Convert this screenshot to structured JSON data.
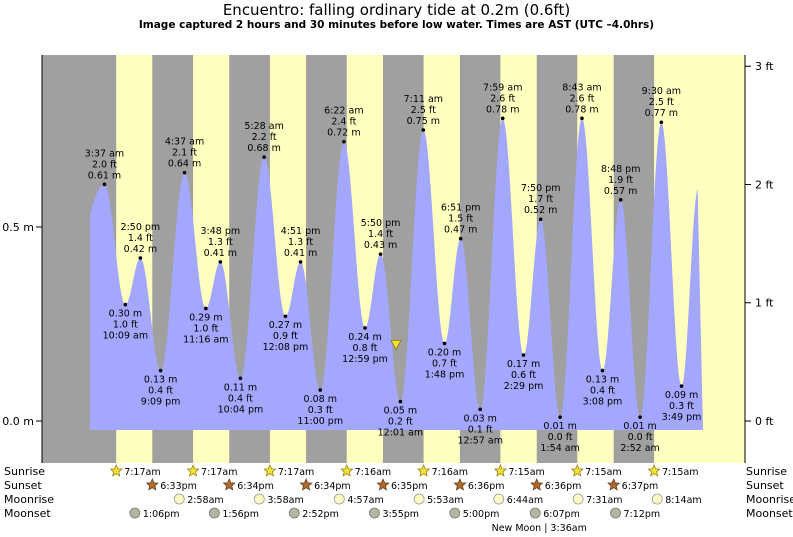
{
  "title": "Encuentro: falling  ordinary tide at 0.2m (0.6ft)",
  "subtitle": "Image captured 2 hours and 30 minutes before low water. Times are AST (UTC –4.0hrs)",
  "colors": {
    "water": "#a3a7fd",
    "night": "#a0a0a0",
    "day": "#ffffc0",
    "sun": "#f5df3a",
    "sunset": "#b06a2c",
    "moon": "#fdfbc4",
    "moonset": "#b5b5a0"
  },
  "chart_data": {
    "type": "area",
    "ylim_m": [
      -0.02,
      0.93
    ],
    "y_ticks_m": [
      {
        "value": 0.5,
        "label": "0.5 m"
      },
      {
        "value": 0.0,
        "label": "0.0 m"
      }
    ],
    "y_ticks_ft": [
      {
        "value": 3,
        "label": "3 ft"
      },
      {
        "value": 2,
        "label": "2 ft"
      },
      {
        "value": 1,
        "label": "1 ft"
      },
      {
        "value": 0,
        "label": "0 ft"
      }
    ],
    "current_level_m": 0.2,
    "tides": [
      {
        "hour": -11.4,
        "m": 0.23
      },
      {
        "hour": 3.62,
        "m": 0.61,
        "lines": [
          "3:37 am",
          "2.0 ft",
          "0.61 m"
        ],
        "type": "high"
      },
      {
        "hour": 10.15,
        "m": 0.3,
        "lines": [
          "0.30 m",
          "1.0 ft",
          "10:09 am"
        ],
        "type": "low"
      },
      {
        "hour": 14.83,
        "m": 0.42,
        "lines": [
          "2:50 pm",
          "1.4 ft",
          "0.42 m"
        ],
        "type": "high"
      },
      {
        "hour": 21.15,
        "m": 0.13,
        "lines": [
          "0.13 m",
          "0.4 ft",
          "9:09 pm"
        ],
        "type": "low"
      },
      {
        "hour": 28.62,
        "m": 0.64,
        "lines": [
          "4:37 am",
          "2.1 ft",
          "0.64 m"
        ],
        "type": "high"
      },
      {
        "hour": 35.27,
        "m": 0.29,
        "lines": [
          "0.29 m",
          "1.0 ft",
          "11:16 am"
        ],
        "type": "low"
      },
      {
        "hour": 39.8,
        "m": 0.41,
        "lines": [
          "3:48 pm",
          "1.3 ft",
          "0.41 m"
        ],
        "type": "high"
      },
      {
        "hour": 46.07,
        "m": 0.11,
        "lines": [
          "0.11 m",
          "0.4 ft",
          "10:04 pm"
        ],
        "type": "low"
      },
      {
        "hour": 53.47,
        "m": 0.68,
        "lines": [
          "5:28 am",
          "2.2 ft",
          "0.68 m"
        ],
        "type": "high"
      },
      {
        "hour": 60.13,
        "m": 0.27,
        "lines": [
          "0.27 m",
          "0.9 ft",
          "12:08 pm"
        ],
        "type": "low"
      },
      {
        "hour": 64.85,
        "m": 0.41,
        "lines": [
          "4:51 pm",
          "1.3 ft",
          "0.41 m"
        ],
        "type": "high"
      },
      {
        "hour": 71.0,
        "m": 0.08,
        "lines": [
          "0.08 m",
          "0.3 ft",
          "11:00 pm"
        ],
        "type": "low"
      },
      {
        "hour": 78.37,
        "m": 0.72,
        "lines": [
          "6:22 am",
          "2.4 ft",
          "0.72 m"
        ],
        "type": "high"
      },
      {
        "hour": 84.98,
        "m": 0.24,
        "lines": [
          "0.24 m",
          "0.8 ft",
          "12:59 pm"
        ],
        "type": "low"
      },
      {
        "hour": 89.83,
        "m": 0.43,
        "lines": [
          "5:50 pm",
          "1.4 ft",
          "0.43 m"
        ],
        "type": "high"
      },
      {
        "hour": 96.02,
        "m": 0.05,
        "lines": [
          "0.05 m",
          "0.2 ft",
          "12:01 am"
        ],
        "type": "low"
      },
      {
        "hour": 103.18,
        "m": 0.75,
        "lines": [
          "7:11 am",
          "2.5 ft",
          "0.75 m"
        ],
        "type": "high"
      },
      {
        "hour": 109.8,
        "m": 0.2,
        "lines": [
          "0.20 m",
          "0.7 ft",
          "1:48 pm"
        ],
        "type": "low"
      },
      {
        "hour": 114.85,
        "m": 0.47,
        "lines": [
          "6:51 pm",
          "1.5 ft",
          "0.47 m"
        ],
        "type": "high"
      },
      {
        "hour": 120.95,
        "m": 0.03,
        "lines": [
          "0.03 m",
          "0.1 ft",
          "12:57 am"
        ],
        "type": "low"
      },
      {
        "hour": 127.98,
        "m": 0.78,
        "lines": [
          "7:59 am",
          "2.6 ft",
          "0.78 m"
        ],
        "type": "high"
      },
      {
        "hour": 134.48,
        "m": 0.17,
        "lines": [
          "0.17 m",
          "0.6 ft",
          "2:29 pm"
        ],
        "type": "low"
      },
      {
        "hour": 139.83,
        "m": 0.52,
        "lines": [
          "7:50 pm",
          "1.7 ft",
          "0.52 m"
        ],
        "type": "high"
      },
      {
        "hour": 145.9,
        "m": 0.01,
        "lines": [
          "0.01 m",
          "0.0 ft",
          "1:54 am"
        ],
        "type": "low"
      },
      {
        "hour": 152.72,
        "m": 0.78,
        "lines": [
          "8:43 am",
          "2.6 ft",
          "0.78 m"
        ],
        "type": "high"
      },
      {
        "hour": 159.13,
        "m": 0.13,
        "lines": [
          "0.13 m",
          "0.4 ft",
          "3:08 pm"
        ],
        "type": "low"
      },
      {
        "hour": 164.8,
        "m": 0.57,
        "lines": [
          "8:48 pm",
          "1.9 ft",
          "0.57 m"
        ],
        "type": "high"
      },
      {
        "hour": 170.87,
        "m": 0.01,
        "lines": [
          "0.01 m",
          "0.0 ft",
          "2:52 am"
        ],
        "type": "low"
      },
      {
        "hour": 177.5,
        "m": 0.77,
        "lines": [
          "9:30 am",
          "2.5 ft",
          "0.77 m"
        ],
        "type": "high"
      },
      {
        "hour": 183.82,
        "m": 0.09,
        "lines": [
          "0.09 m",
          "0.3 ft",
          "3:49 pm"
        ],
        "type": "low"
      },
      {
        "hour": 189.0,
        "m": 0.6
      }
    ],
    "day_spans": [
      {
        "rise": 7.28,
        "set": 18.55
      },
      {
        "rise": 31.28,
        "set": 42.57
      },
      {
        "rise": 55.28,
        "set": 66.57
      },
      {
        "rise": 79.27,
        "set": 90.58
      },
      {
        "rise": 103.27,
        "set": 114.6
      },
      {
        "rise": 127.25,
        "set": 138.6
      },
      {
        "rise": 151.25,
        "set": 162.62
      },
      {
        "rise": 175.25
      }
    ],
    "rows": {
      "labels": [
        "Sunrise",
        "Sunset",
        "Moonrise",
        "Moonset"
      ],
      "sunrise": [
        {
          "hour": 7.28,
          "label": "7:17am"
        },
        {
          "hour": 31.28,
          "label": "7:17am"
        },
        {
          "hour": 55.28,
          "label": "7:17am"
        },
        {
          "hour": 79.27,
          "label": "7:16am"
        },
        {
          "hour": 103.27,
          "label": "7:16am"
        },
        {
          "hour": 127.25,
          "label": "7:15am"
        },
        {
          "hour": 151.25,
          "label": "7:15am"
        },
        {
          "hour": 175.25,
          "label": "7:15am"
        }
      ],
      "sunset": [
        {
          "hour": 18.55,
          "label": "6:33pm"
        },
        {
          "hour": 42.57,
          "label": "6:34pm"
        },
        {
          "hour": 66.57,
          "label": "6:34pm"
        },
        {
          "hour": 90.58,
          "label": "6:35pm"
        },
        {
          "hour": 114.6,
          "label": "6:36pm"
        },
        {
          "hour": 138.6,
          "label": "6:36pm"
        },
        {
          "hour": 162.62,
          "label": "6:37pm"
        }
      ],
      "moonrise": [
        {
          "hour": 26.97,
          "label": "2:58am"
        },
        {
          "hour": 51.97,
          "label": "3:58am"
        },
        {
          "hour": 76.95,
          "label": "4:57am"
        },
        {
          "hour": 101.88,
          "label": "5:53am"
        },
        {
          "hour": 126.73,
          "label": "6:44am"
        },
        {
          "hour": 151.52,
          "label": "7:31am"
        },
        {
          "hour": 176.23,
          "label": "8:14am"
        }
      ],
      "moonset": [
        {
          "hour": 13.1,
          "label": "1:06pm"
        },
        {
          "hour": 37.93,
          "label": "1:56pm"
        },
        {
          "hour": 62.87,
          "label": "2:52pm"
        },
        {
          "hour": 87.92,
          "label": "3:55pm"
        },
        {
          "hour": 113.0,
          "label": "5:00pm"
        },
        {
          "hour": 138.12,
          "label": "6:07pm"
        },
        {
          "hour": 163.2,
          "label": "7:12pm"
        }
      ],
      "new_moon": {
        "hour": 138.12,
        "label": "New Moon | 3:36am"
      }
    }
  }
}
